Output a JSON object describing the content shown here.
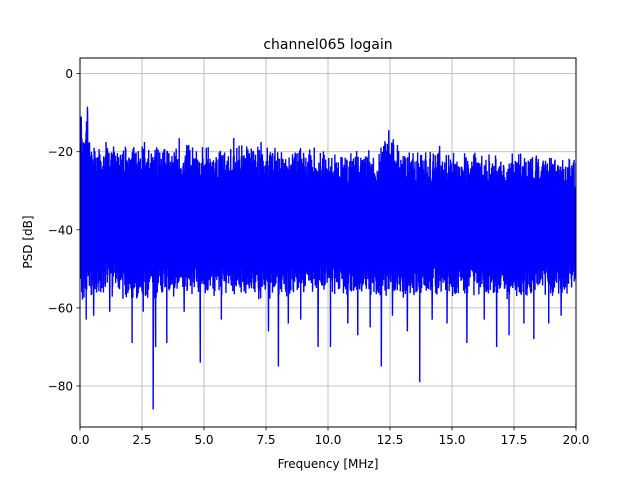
{
  "chart_data": {
    "type": "line",
    "title": "channel065 logain",
    "xlabel": "Frequency [MHz]",
    "ylabel": "PSD [dB]",
    "xlim": [
      0,
      20
    ],
    "ylim": [
      -90.5,
      4
    ],
    "grid": true,
    "x_ticks": [
      0,
      2.5,
      5,
      7.5,
      10,
      12.5,
      15,
      17.5,
      20
    ],
    "x_tick_labels": [
      "0.0",
      "2.5",
      "5.0",
      "7.5",
      "10.0",
      "12.5",
      "15.0",
      "17.5",
      "20.0"
    ],
    "y_ticks": [
      0,
      -20,
      -40,
      -60,
      -80
    ],
    "y_tick_labels": [
      "0",
      "−20",
      "−40",
      "−60",
      "−80"
    ],
    "series": [
      {
        "name": "",
        "color": "#0000ff",
        "envelope": {
          "x": [
            0,
            0.1,
            0.3,
            0.5,
            1,
            2,
            3,
            4,
            5,
            6,
            7,
            8,
            9,
            10,
            11,
            12,
            12.5,
            13,
            14,
            15,
            16,
            17,
            18,
            19,
            20
          ],
          "upper": [
            -12,
            -15,
            -9,
            -17,
            -18,
            -18,
            -18.5,
            -18,
            -18.5,
            -18,
            -18,
            -18.5,
            -18.5,
            -19,
            -19.5,
            -19.5,
            -14.5,
            -19.5,
            -19.5,
            -20,
            -20,
            -20.5,
            -20,
            -21,
            -21.5
          ],
          "lower": [
            -56,
            -60,
            -57,
            -57,
            -57,
            -58,
            -58,
            -57,
            -57,
            -57,
            -58,
            -58,
            -57,
            -57,
            -57,
            -57,
            -58,
            -58,
            -58,
            -57,
            -57,
            -58,
            -58,
            -57,
            -57
          ]
        },
        "dips": [
          {
            "x": 0.25,
            "y": -63
          },
          {
            "x": 0.55,
            "y": -62
          },
          {
            "x": 1.2,
            "y": -61
          },
          {
            "x": 2.1,
            "y": -69
          },
          {
            "x": 2.55,
            "y": -61
          },
          {
            "x": 2.95,
            "y": -86
          },
          {
            "x": 3.05,
            "y": -70
          },
          {
            "x": 3.5,
            "y": -69
          },
          {
            "x": 4.2,
            "y": -61
          },
          {
            "x": 4.85,
            "y": -74
          },
          {
            "x": 5.7,
            "y": -63
          },
          {
            "x": 6.2,
            "y": -61
          },
          {
            "x": 7.6,
            "y": -66
          },
          {
            "x": 8.0,
            "y": -75
          },
          {
            "x": 8.4,
            "y": -64
          },
          {
            "x": 8.9,
            "y": -63
          },
          {
            "x": 9.6,
            "y": -70
          },
          {
            "x": 10.1,
            "y": -70
          },
          {
            "x": 10.8,
            "y": -64
          },
          {
            "x": 11.2,
            "y": -67
          },
          {
            "x": 11.7,
            "y": -65
          },
          {
            "x": 12.15,
            "y": -75
          },
          {
            "x": 12.6,
            "y": -62
          },
          {
            "x": 13.2,
            "y": -66
          },
          {
            "x": 13.7,
            "y": -79
          },
          {
            "x": 14.2,
            "y": -63
          },
          {
            "x": 14.8,
            "y": -64
          },
          {
            "x": 15.6,
            "y": -69
          },
          {
            "x": 16.3,
            "y": -63
          },
          {
            "x": 16.8,
            "y": -70
          },
          {
            "x": 17.3,
            "y": -67
          },
          {
            "x": 17.9,
            "y": -64
          },
          {
            "x": 18.3,
            "y": -68
          },
          {
            "x": 18.9,
            "y": -64
          },
          {
            "x": 19.4,
            "y": -62
          }
        ],
        "peaks": [
          {
            "x": 0.05,
            "y": -11
          },
          {
            "x": 0.3,
            "y": -8.5
          },
          {
            "x": 1.05,
            "y": -17.5
          },
          {
            "x": 2.6,
            "y": -17.5
          },
          {
            "x": 4.0,
            "y": -16.5
          },
          {
            "x": 6.2,
            "y": -16.5
          },
          {
            "x": 7.3,
            "y": -17.5
          },
          {
            "x": 12.45,
            "y": -14.5
          },
          {
            "x": 14.5,
            "y": -18.5
          }
        ]
      }
    ]
  }
}
